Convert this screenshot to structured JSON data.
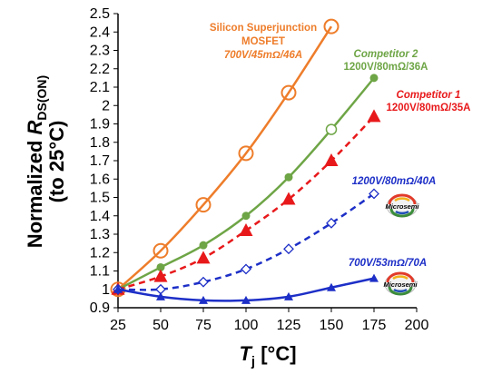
{
  "chart_data": {
    "type": "line",
    "x": [
      25,
      50,
      75,
      100,
      125,
      150,
      175
    ],
    "xlim": [
      25,
      200
    ],
    "ylim": [
      0.9,
      2.5
    ],
    "xticks": [
      "25",
      "50",
      "75",
      "100",
      "125",
      "150",
      "175",
      "200"
    ],
    "yticks": [
      "0.9",
      "1",
      "1.1",
      "1.2",
      "1.3",
      "1.4",
      "1.5",
      "1.6",
      "1.7",
      "1.8",
      "1.9",
      "2",
      "2.1",
      "2.2",
      "2.3",
      "2.4",
      "2.5"
    ],
    "xlabel": {
      "main": "T",
      "sub": "j",
      "unit": " [°C]"
    },
    "ylabel": {
      "line1_pre": "Normalized ",
      "line1_var": "R",
      "line1_sub": "DS(ON)",
      "line2": "(to 25°C)"
    },
    "grid": false,
    "series": [
      {
        "id": "silicon",
        "color": "#ee7d2b",
        "marker": "circle-open",
        "dash": "solid",
        "x": [
          25,
          50,
          75,
          100,
          125,
          150
        ],
        "values": [
          1.0,
          1.21,
          1.46,
          1.74,
          2.07,
          2.43
        ]
      },
      {
        "id": "comp2",
        "color": "#6ea546",
        "marker": "circle-filled",
        "dash": "solid",
        "x": [
          25,
          50,
          75,
          100,
          125,
          150,
          175
        ],
        "values": [
          1.0,
          1.12,
          1.24,
          1.4,
          1.61,
          1.87,
          2.15
        ]
      },
      {
        "id": "comp1",
        "color": "#e8191b",
        "marker": "triangle",
        "dash": "dashed",
        "x": [
          25,
          50,
          75,
          100,
          125,
          150,
          175
        ],
        "values": [
          1.0,
          1.07,
          1.17,
          1.32,
          1.49,
          1.7,
          1.94
        ]
      },
      {
        "id": "ms40",
        "color": "#1d2fc7",
        "marker": "diamond-open",
        "dash": "dashed",
        "x": [
          25,
          50,
          75,
          100,
          125,
          150,
          175
        ],
        "values": [
          1.0,
          1.0,
          1.04,
          1.11,
          1.22,
          1.36,
          1.52
        ]
      },
      {
        "id": "ms70",
        "color": "#1d2fc7",
        "marker": "triangle-small",
        "dash": "solid",
        "x": [
          25,
          50,
          75,
          100,
          125,
          150,
          175
        ],
        "values": [
          1.0,
          0.96,
          0.94,
          0.94,
          0.96,
          1.01,
          1.06
        ]
      }
    ],
    "annotations": {
      "silicon": {
        "line1": "Silicon Superjunction",
        "line2": "MOSFET",
        "line3": "700V/45mΩ/46A",
        "color": "#ee7d2b"
      },
      "comp2": {
        "line1": "Competitor 2",
        "line2": "1200V/80mΩ/36A",
        "color": "#6ea546"
      },
      "comp1": {
        "line1": "Competitor 1",
        "line2": "1200V/80mΩ/35A",
        "color": "#e8191b"
      },
      "ms40": {
        "line1": "1200V/80mΩ/40A",
        "color": "#1d2fc7"
      },
      "ms70": {
        "line1": "700V/53mΩ/70A",
        "color": "#1d2fc7"
      }
    },
    "logos": [
      "Microsemi",
      "Microsemi"
    ]
  }
}
